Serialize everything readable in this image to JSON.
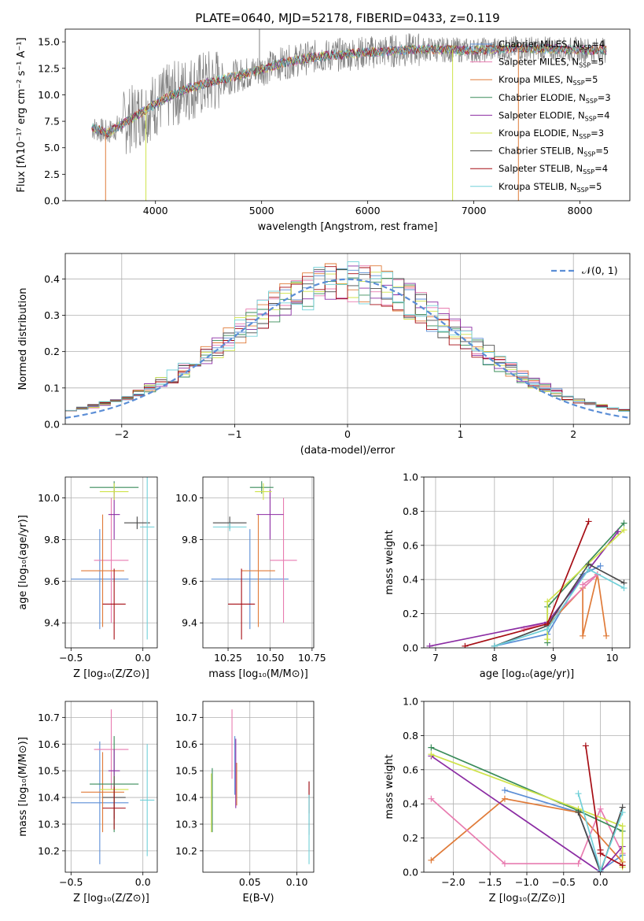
{
  "figure": {
    "title": "PLATE=0640, MJD=52178, FIBERID=0433, z=0.119"
  },
  "colors": {
    "mpl1": "#5b8ed6",
    "mpl2": "#e07b39",
    "mpl3": "#3a8c5a",
    "mpl4": "#8b2ca3",
    "mpl5": "#cfe34a",
    "mpl6": "#4a4a4a",
    "mpl7": "#a60d14",
    "mpl8": "#70d0d8",
    "pink": "#e87cb0",
    "spec": "#808080"
  },
  "legend": [
    {
      "label": "Chabrier MILES, N",
      "sub": "SSP",
      "suffix": "=4",
      "color": "#5b8ed6"
    },
    {
      "label": "Salpeter MILES, N",
      "sub": "SSP",
      "suffix": "=5",
      "color": "#e87cb0"
    },
    {
      "label": "Kroupa MILES, N",
      "sub": "SSP",
      "suffix": "=5",
      "color": "#e07b39"
    },
    {
      "label": "Chabrier ELODIE, N",
      "sub": "SSP",
      "suffix": "=3",
      "color": "#3a8c5a"
    },
    {
      "label": "Salpeter ELODIE, N",
      "sub": "SSP",
      "suffix": "=4",
      "color": "#8b2ca3"
    },
    {
      "label": "Kroupa ELODIE, N",
      "sub": "SSP",
      "suffix": "=3",
      "color": "#cfe34a"
    },
    {
      "label": "Chabrier STELIB, N",
      "sub": "SSP",
      "suffix": "=5",
      "color": "#4a4a4a"
    },
    {
      "label": "Salpeter STELIB, N",
      "sub": "SSP",
      "suffix": "=4",
      "color": "#a60d14"
    },
    {
      "label": "Kroupa STELIB, N",
      "sub": "SSP",
      "suffix": "=5",
      "color": "#70d0d8"
    }
  ],
  "hist_legend": "𝒩(0, 1)",
  "chart_data": [
    {
      "type": "line",
      "id": "spectrum",
      "title": "PLATE=0640, MJD=52178, FIBERID=0433, z=0.119",
      "xlabel": "wavelength [Angstrom, rest frame]",
      "ylabel": "Flux [fλ10⁻¹⁷ erg cm⁻² s⁻¹ A⁻¹]",
      "xlim": [
        3150,
        8470
      ],
      "ylim": [
        0,
        16.2
      ],
      "xticks": [
        4000,
        5000,
        6000,
        7000,
        8000
      ],
      "yticks": [
        0.0,
        2.5,
        5.0,
        7.5,
        10.0,
        12.5,
        15.0
      ],
      "xtick_labels": [
        "4000",
        "5000",
        "6000",
        "7000",
        "8000"
      ],
      "ytick_labels": [
        "0.0",
        "2.5",
        "5.0",
        "7.5",
        "10.0",
        "12.5",
        "15.0"
      ],
      "continuum": [
        [
          3400,
          6.9
        ],
        [
          3550,
          6.4
        ],
        [
          3700,
          7.3
        ],
        [
          3900,
          8.5
        ],
        [
          4100,
          9.7
        ],
        [
          4300,
          10.6
        ],
        [
          4600,
          11.4
        ],
        [
          4900,
          12.1
        ],
        [
          5200,
          13.0
        ],
        [
          5500,
          13.6
        ],
        [
          6000,
          14.0
        ],
        [
          6500,
          14.3
        ],
        [
          7000,
          14.2
        ],
        [
          7400,
          14.4
        ],
        [
          7800,
          14.3
        ],
        [
          8250,
          14.2
        ]
      ],
      "spikes": [
        [
          3530,
          0.0
        ],
        [
          3910,
          0.0
        ],
        [
          4980,
          16.2
        ],
        [
          6800,
          0.0
        ],
        [
          7420,
          0.0
        ]
      ]
    },
    {
      "type": "step",
      "id": "residual-histogram",
      "xlabel": "(data-model)/error",
      "ylabel": "Normed distribution",
      "xlim": [
        -2.5,
        2.5
      ],
      "ylim": [
        0,
        0.47
      ],
      "xticks": [
        -2,
        -1,
        0,
        1,
        2
      ],
      "yticks": [
        0.0,
        0.1,
        0.2,
        0.3,
        0.4
      ],
      "xtick_labels": [
        "−2",
        "−1",
        "0",
        "1",
        "2"
      ],
      "ytick_labels": [
        "0.0",
        "0.1",
        "0.2",
        "0.3",
        "0.4"
      ],
      "bin_width": 0.1,
      "bin_start": -2.5,
      "gaussian": {
        "mean": 0,
        "sigma": 1,
        "label": "𝒩(0, 1)"
      }
    },
    {
      "type": "errorbar",
      "id": "age-vs-Z",
      "xlabel": "Z [log₁₀(Z/Z⊙)]",
      "ylabel": "age  [log₁₀(age/yr)]",
      "xlim": [
        -0.54,
        0.1
      ],
      "ylim": [
        9.28,
        10.1
      ],
      "xticks": [
        -0.5,
        0.0
      ],
      "yticks": [
        9.4,
        9.6,
        9.8,
        10.0
      ],
      "xtick_labels": [
        "−0.5",
        "0.0"
      ],
      "ytick_labels": [
        "9.4",
        "9.6",
        "9.8",
        "10.0"
      ],
      "points": [
        {
          "x": -0.3,
          "xerr": 0.2,
          "y": 9.61,
          "yerr": 0.24,
          "c": "#5b8ed6"
        },
        {
          "x": -0.22,
          "xerr": 0.12,
          "y": 9.7,
          "yerr": 0.3,
          "c": "#e87cb0"
        },
        {
          "x": -0.28,
          "xerr": 0.15,
          "y": 9.65,
          "yerr": 0.27,
          "c": "#e07b39"
        },
        {
          "x": -0.2,
          "xerr": 0.17,
          "y": 10.05,
          "yerr": 0.03,
          "c": "#3a8c5a"
        },
        {
          "x": -0.2,
          "xerr": 0.04,
          "y": 9.92,
          "yerr": 0.12,
          "c": "#8b2ca3"
        },
        {
          "x": -0.2,
          "xerr": 0.1,
          "y": 10.03,
          "yerr": 0.04,
          "c": "#cfe34a"
        },
        {
          "x": -0.04,
          "xerr": 0.09,
          "y": 9.88,
          "yerr": 0.03,
          "c": "#4a4a4a"
        },
        {
          "x": -0.2,
          "xerr": 0.08,
          "y": 9.49,
          "yerr": 0.17,
          "c": "#a60d14"
        },
        {
          "x": 0.03,
          "xerr": 0.05,
          "y": 9.86,
          "yerr": 0.54,
          "c": "#70d0d8"
        }
      ]
    },
    {
      "type": "errorbar",
      "id": "age-vs-mass",
      "xlabel": "mass [log₁₀(M/M⊙)]",
      "ylabel": "",
      "xlim": [
        10.1,
        10.76
      ],
      "ylim": [
        9.28,
        10.1
      ],
      "xticks": [
        10.25,
        10.5,
        10.75
      ],
      "yticks": [
        9.4,
        9.6,
        9.8,
        10.0
      ],
      "xtick_labels": [
        "10.25",
        "10.50",
        "10.75"
      ],
      "ytick_labels": [
        "9.4",
        "9.6",
        "9.8",
        "10.0"
      ],
      "points": [
        {
          "x": 10.38,
          "xerr": 0.23,
          "y": 9.61,
          "yerr": 0.24,
          "c": "#5b8ed6"
        },
        {
          "x": 10.58,
          "xerr": 0.08,
          "y": 9.7,
          "yerr": 0.3,
          "c": "#e87cb0"
        },
        {
          "x": 10.43,
          "xerr": 0.1,
          "y": 9.65,
          "yerr": 0.27,
          "c": "#e07b39"
        },
        {
          "x": 10.45,
          "xerr": 0.07,
          "y": 10.05,
          "yerr": 0.03,
          "c": "#3a8c5a"
        },
        {
          "x": 10.5,
          "xerr": 0.08,
          "y": 9.92,
          "yerr": 0.12,
          "c": "#8b2ca3"
        },
        {
          "x": 10.46,
          "xerr": 0.05,
          "y": 10.03,
          "yerr": 0.04,
          "c": "#cfe34a"
        },
        {
          "x": 10.26,
          "xerr": 0.1,
          "y": 9.88,
          "yerr": 0.03,
          "c": "#4a4a4a"
        },
        {
          "x": 10.33,
          "xerr": 0.08,
          "y": 9.49,
          "yerr": 0.17,
          "c": "#a60d14"
        },
        {
          "x": 10.26,
          "xerr": 0.1,
          "y": 9.86,
          "yerr": 0.02,
          "c": "#70d0d8"
        }
      ]
    },
    {
      "type": "line",
      "id": "mass-weight-vs-age",
      "xlabel": "age  [log₁₀(age/yr)]",
      "ylabel": "mass weight",
      "xlim": [
        6.8,
        10.3
      ],
      "ylim": [
        0,
        1.0
      ],
      "xticks": [
        7,
        8,
        9,
        10
      ],
      "yticks": [
        0.0,
        0.2,
        0.4,
        0.6,
        0.8,
        1.0
      ],
      "xtick_labels": [
        "7",
        "8",
        "9",
        "10"
      ],
      "ytick_labels": [
        "0.0",
        "0.2",
        "0.4",
        "0.6",
        "0.8",
        "1.0"
      ],
      "series": [
        {
          "c": "#5b8ed6",
          "x": [
            8.0,
            8.9,
            9.5,
            9.8
          ],
          "y": [
            0.01,
            0.08,
            0.43,
            0.48
          ]
        },
        {
          "c": "#e07b39",
          "x": [
            8.9,
            9.5,
            9.5,
            9.75,
            9.9
          ],
          "y": [
            0.13,
            0.35,
            0.07,
            0.43,
            0.07
          ]
        },
        {
          "c": "#e87cb0",
          "x": [
            8.5,
            8.9,
            9.75,
            9.5
          ],
          "y": [
            0.11,
            0.15,
            0.43,
            0.37
          ]
        },
        {
          "c": "#3a8c5a",
          "x": [
            8.9,
            8.9,
            10.2
          ],
          "y": [
            0.03,
            0.24,
            0.73
          ]
        },
        {
          "c": "#8b2ca3",
          "x": [
            6.9,
            8.9,
            10.1
          ],
          "y": [
            0.01,
            0.15,
            0.68
          ]
        },
        {
          "c": "#cfe34a",
          "x": [
            8.9,
            8.9,
            10.2
          ],
          "y": [
            0.05,
            0.27,
            0.69
          ]
        },
        {
          "c": "#4a4a4a",
          "x": [
            8.0,
            8.9,
            9.6,
            10.2
          ],
          "y": [
            0.01,
            0.13,
            0.49,
            0.38
          ]
        },
        {
          "c": "#a60d14",
          "x": [
            7.5,
            8.9,
            9.6
          ],
          "y": [
            0.01,
            0.14,
            0.74
          ]
        },
        {
          "c": "#70d0d8",
          "x": [
            8.0,
            8.9,
            9.6,
            10.2
          ],
          "y": [
            0.01,
            0.11,
            0.46,
            0.35
          ]
        }
      ]
    },
    {
      "type": "errorbar",
      "id": "mass-vs-Z",
      "xlabel": "Z [log₁₀(Z/Z⊙)]",
      "ylabel": "mass [log₁₀(M/M⊙)]",
      "xlim": [
        -0.54,
        0.1
      ],
      "ylim": [
        10.12,
        10.76
      ],
      "xticks": [
        -0.5,
        0.0
      ],
      "yticks": [
        10.2,
        10.3,
        10.4,
        10.5,
        10.6,
        10.7
      ],
      "xtick_labels": [
        "−0.5",
        "0.0"
      ],
      "ytick_labels": [
        "10.2",
        "10.3",
        "10.4",
        "10.5",
        "10.6",
        "10.7"
      ],
      "points": [
        {
          "x": -0.3,
          "xerr": 0.2,
          "y": 10.38,
          "yerr": 0.23,
          "c": "#5b8ed6"
        },
        {
          "x": -0.22,
          "xerr": 0.12,
          "y": 10.58,
          "yerr": 0.15,
          "c": "#e87cb0"
        },
        {
          "x": -0.28,
          "xerr": 0.15,
          "y": 10.42,
          "yerr": 0.15,
          "c": "#e07b39"
        },
        {
          "x": -0.2,
          "xerr": 0.17,
          "y": 10.45,
          "yerr": 0.18,
          "c": "#3a8c5a"
        },
        {
          "x": -0.2,
          "xerr": 0.04,
          "y": 10.5,
          "yerr": 0.08,
          "c": "#8b2ca3"
        },
        {
          "x": -0.2,
          "xerr": 0.1,
          "y": 10.43,
          "yerr": 0.05,
          "c": "#cfe34a"
        },
        {
          "x": -0.2,
          "xerr": 0.08,
          "y": 10.4,
          "yerr": 0.08,
          "c": "#4a4a4a"
        },
        {
          "x": -0.2,
          "xerr": 0.08,
          "y": 10.36,
          "yerr": 0.08,
          "c": "#a60d14"
        },
        {
          "x": 0.03,
          "xerr": 0.05,
          "y": 10.39,
          "yerr": 0.21,
          "c": "#70d0d8"
        }
      ]
    },
    {
      "type": "errorbar",
      "id": "mass-vs-EBV",
      "xlabel": "E(B-V)",
      "ylabel": "",
      "xlim": [
        0.0,
        0.118
      ],
      "ylim": [
        10.12,
        10.76
      ],
      "xticks": [
        0.05,
        0.1
      ],
      "yticks": [
        10.2,
        10.3,
        10.4,
        10.5,
        10.6,
        10.7
      ],
      "xtick_labels": [
        "0.05",
        "0.10"
      ],
      "ytick_labels": [
        "10.2",
        "10.3",
        "10.4",
        "10.5",
        "10.6",
        "10.7"
      ],
      "points": [
        {
          "x": 0.034,
          "xerr": 0,
          "y": 10.52,
          "yerr": 0.11,
          "c": "#5b8ed6"
        },
        {
          "x": 0.031,
          "xerr": 0,
          "y": 10.6,
          "yerr": 0.13,
          "c": "#e87cb0"
        },
        {
          "x": 0.036,
          "xerr": 0,
          "y": 10.45,
          "yerr": 0.08,
          "c": "#e07b39"
        },
        {
          "x": 0.01,
          "xerr": 0,
          "y": 10.39,
          "yerr": 0.12,
          "c": "#3a8c5a"
        },
        {
          "x": 0.035,
          "xerr": 0,
          "y": 10.49,
          "yerr": 0.13,
          "c": "#8b2ca3"
        },
        {
          "x": 0.009,
          "xerr": 0,
          "y": 10.38,
          "yerr": 0.11,
          "c": "#cfe34a"
        },
        {
          "x": 0.113,
          "xerr": 0,
          "y": 10.36,
          "yerr": 0.1,
          "c": "#4a4a4a"
        },
        {
          "x": 0.113,
          "xerr": 0,
          "y": 10.4,
          "yerr": 0.06,
          "c": "#a60d14"
        },
        {
          "x": 0.113,
          "xerr": 0,
          "y": 10.28,
          "yerr": 0.13,
          "c": "#70d0d8"
        }
      ]
    },
    {
      "type": "line",
      "id": "mass-weight-vs-Z",
      "xlabel": "Z [log₁₀(Z/Z⊙)]",
      "ylabel": "mass weight",
      "xlim": [
        -2.4,
        0.4
      ],
      "ylim": [
        0,
        1.0
      ],
      "xticks": [
        -2.0,
        -1.5,
        -1.0,
        -0.5,
        0.0
      ],
      "yticks": [
        0.0,
        0.2,
        0.4,
        0.6,
        0.8,
        1.0
      ],
      "xtick_labels": [
        "−2.0",
        "−1.5",
        "−1.0",
        "−0.5",
        "0.0"
      ],
      "ytick_labels": [
        "0.0",
        "0.2",
        "0.4",
        "0.6",
        "0.8",
        "1.0"
      ],
      "series": [
        {
          "c": "#5b8ed6",
          "x": [
            -1.3,
            -0.3,
            0.0,
            0.3
          ],
          "y": [
            0.48,
            0.35,
            0.01,
            0.1
          ]
        },
        {
          "c": "#e07b39",
          "x": [
            -2.3,
            -1.3,
            -0.3,
            0.3
          ],
          "y": [
            0.07,
            0.43,
            0.35,
            0.06
          ]
        },
        {
          "c": "#e87cb0",
          "x": [
            -2.3,
            -1.3,
            -0.3,
            0.0,
            0.3
          ],
          "y": [
            0.43,
            0.05,
            0.05,
            0.37,
            0.11
          ]
        },
        {
          "c": "#3a8c5a",
          "x": [
            -2.3,
            -0.3,
            0.3
          ],
          "y": [
            0.73,
            0.36,
            0.24
          ]
        },
        {
          "c": "#8b2ca3",
          "x": [
            -2.3,
            0.0,
            0.3
          ],
          "y": [
            0.68,
            0.0,
            0.15
          ]
        },
        {
          "c": "#cfe34a",
          "x": [
            -2.3,
            -0.3,
            0.3,
            0.3
          ],
          "y": [
            0.69,
            0.37,
            0.27,
            0.03
          ]
        },
        {
          "c": "#4a4a4a",
          "x": [
            -0.3,
            0.0,
            0.3
          ],
          "y": [
            0.35,
            0.0,
            0.38
          ]
        },
        {
          "c": "#a60d14",
          "x": [
            -0.2,
            0.0,
            0.0,
            0.3
          ],
          "y": [
            0.74,
            0.13,
            0.11,
            0.04
          ]
        },
        {
          "c": "#70d0d8",
          "x": [
            -0.3,
            0.0,
            0.3
          ],
          "y": [
            0.46,
            0.01,
            0.35
          ]
        }
      ]
    }
  ]
}
